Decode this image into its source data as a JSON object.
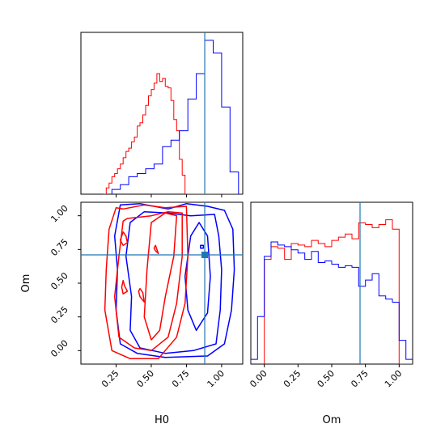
{
  "colors": {
    "series_a": "#ff0000",
    "series_b": "#0000ff",
    "truth": "#1f77b4",
    "axes": "#000000"
  },
  "chart_data": [
    {
      "id": "h0-marginal",
      "type": "histogram",
      "xlim": [
        0.0,
        1.15
      ],
      "xticks": [
        0.25,
        0.5,
        0.75,
        1.0
      ],
      "show_tick_labels": false,
      "truth": 0.88,
      "series": [
        {
          "color": "#ff0000",
          "x": [
            0.16,
            0.18,
            0.2,
            0.22,
            0.24,
            0.26,
            0.28,
            0.3,
            0.32,
            0.34,
            0.36,
            0.38,
            0.4,
            0.42,
            0.44,
            0.46,
            0.48,
            0.5,
            0.52,
            0.54,
            0.56,
            0.58,
            0.6,
            0.62,
            0.64,
            0.66,
            0.68,
            0.7,
            0.72,
            0.74
          ],
          "y": [
            0.0,
            0.04,
            0.07,
            0.11,
            0.13,
            0.16,
            0.19,
            0.23,
            0.27,
            0.29,
            0.33,
            0.36,
            0.43,
            0.45,
            0.5,
            0.56,
            0.62,
            0.66,
            0.7,
            0.76,
            0.71,
            0.73,
            0.68,
            0.67,
            0.59,
            0.47,
            0.4,
            0.22,
            0.12,
            0.0
          ]
        },
        {
          "color": "#0000ff",
          "x": [
            0.22,
            0.28,
            0.34,
            0.4,
            0.46,
            0.52,
            0.58,
            0.64,
            0.7,
            0.76,
            0.82,
            0.88,
            0.94,
            1.0,
            1.06,
            1.12
          ],
          "y": [
            0.03,
            0.06,
            0.11,
            0.13,
            0.16,
            0.19,
            0.3,
            0.34,
            0.4,
            0.6,
            0.76,
            0.97,
            0.89,
            0.55,
            0.14,
            0.0
          ]
        }
      ]
    },
    {
      "id": "om-marginal",
      "type": "histogram",
      "xlim": [
        -0.1,
        1.1
      ],
      "xticks": [
        0.0,
        0.25,
        0.5,
        0.75,
        1.0
      ],
      "xticklabels": [
        "0.00",
        "0.25",
        "0.50",
        "0.75",
        "1.00"
      ],
      "xlabel": "Om",
      "truth": 0.71,
      "series": [
        {
          "color": "#ff0000",
          "x": [
            0.0,
            0.05,
            0.1,
            0.15,
            0.2,
            0.25,
            0.3,
            0.35,
            0.4,
            0.45,
            0.5,
            0.55,
            0.6,
            0.65,
            0.7,
            0.75,
            0.8,
            0.85,
            0.9,
            0.95,
            1.0
          ],
          "y": [
            0.66,
            0.74,
            0.73,
            0.66,
            0.76,
            0.75,
            0.74,
            0.78,
            0.76,
            0.74,
            0.78,
            0.8,
            0.82,
            0.79,
            0.89,
            0.88,
            0.86,
            0.88,
            0.91,
            0.85,
            0.0
          ]
        },
        {
          "color": "#0000ff",
          "x": [
            -0.1,
            -0.05,
            0.0,
            0.05,
            0.1,
            0.15,
            0.2,
            0.25,
            0.3,
            0.35,
            0.4,
            0.45,
            0.5,
            0.55,
            0.6,
            0.65,
            0.7,
            0.75,
            0.8,
            0.85,
            0.9,
            0.95,
            1.0,
            1.05,
            1.1
          ],
          "y": [
            0.03,
            0.3,
            0.68,
            0.77,
            0.75,
            0.74,
            0.72,
            0.7,
            0.66,
            0.71,
            0.64,
            0.65,
            0.63,
            0.61,
            0.62,
            0.61,
            0.49,
            0.53,
            0.57,
            0.43,
            0.41,
            0.39,
            0.15,
            0.03,
            0.03
          ]
        }
      ]
    },
    {
      "id": "h0-om-joint",
      "type": "contour",
      "xlim": [
        0.0,
        1.15
      ],
      "ylim": [
        -0.1,
        1.1
      ],
      "xticks": [
        0.25,
        0.5,
        0.75,
        1.0
      ],
      "xticklabels": [
        "0.25",
        "0.50",
        "0.75",
        "1.00"
      ],
      "yticks": [
        0.0,
        0.25,
        0.5,
        0.75,
        1.0
      ],
      "yticklabels": [
        "0.00",
        "0.25",
        "0.50",
        "0.75",
        "1.00"
      ],
      "xlabel": "H0",
      "ylabel": "Om",
      "truth": {
        "x": 0.88,
        "y": 0.71
      },
      "series": [
        {
          "color": "#0000ff",
          "contours": [
            [
              [
                0.62,
                1.05
              ],
              [
                0.75,
                1.09
              ],
              [
                0.9,
                1.07
              ],
              [
                1.02,
                1.04
              ],
              [
                1.08,
                0.9
              ],
              [
                1.09,
                0.6
              ],
              [
                1.07,
                0.3
              ],
              [
                1.02,
                0.05
              ],
              [
                0.9,
                -0.04
              ],
              [
                0.6,
                -0.05
              ],
              [
                0.4,
                -0.02
              ],
              [
                0.28,
                0.05
              ],
              [
                0.25,
                0.3
              ],
              [
                0.26,
                0.6
              ],
              [
                0.24,
                0.85
              ],
              [
                0.28,
                1.08
              ],
              [
                0.42,
                1.09
              ],
              [
                0.62,
                1.05
              ]
            ],
            [
              [
                0.78,
                1.0
              ],
              [
                0.95,
                1.01
              ],
              [
                0.98,
                0.85
              ],
              [
                1.0,
                0.6
              ],
              [
                0.99,
                0.3
              ],
              [
                0.96,
                0.05
              ],
              [
                0.8,
                0.0
              ],
              [
                0.6,
                -0.02
              ],
              [
                0.42,
                0.02
              ],
              [
                0.35,
                0.15
              ],
              [
                0.36,
                0.4
              ],
              [
                0.32,
                0.7
              ],
              [
                0.35,
                0.95
              ],
              [
                0.45,
                1.03
              ],
              [
                0.62,
                1.02
              ],
              [
                0.78,
                1.0
              ]
            ],
            [
              [
                0.78,
                0.85
              ],
              [
                0.74,
                0.55
              ],
              [
                0.76,
                0.3
              ],
              [
                0.82,
                0.15
              ],
              [
                0.9,
                0.28
              ],
              [
                0.92,
                0.55
              ],
              [
                0.9,
                0.85
              ],
              [
                0.84,
                0.95
              ],
              [
                0.78,
                0.85
              ]
            ],
            [
              [
                0.85,
                0.76
              ],
              [
                0.87,
                0.76
              ],
              [
                0.87,
                0.78
              ],
              [
                0.85,
                0.78
              ],
              [
                0.85,
                0.76
              ]
            ]
          ]
        },
        {
          "color": "#ff0000",
          "contours": [
            [
              [
                0.3,
                1.05
              ],
              [
                0.45,
                1.08
              ],
              [
                0.6,
                1.06
              ],
              [
                0.75,
                1.07
              ],
              [
                0.76,
                0.7
              ],
              [
                0.74,
                0.35
              ],
              [
                0.68,
                0.1
              ],
              [
                0.55,
                -0.06
              ],
              [
                0.35,
                -0.06
              ],
              [
                0.22,
                0.0
              ],
              [
                0.17,
                0.3
              ],
              [
                0.18,
                0.6
              ],
              [
                0.2,
                0.9
              ],
              [
                0.25,
                1.06
              ],
              [
                0.3,
                1.05
              ]
            ],
            [
              [
                0.33,
                0.98
              ],
              [
                0.5,
                1.0
              ],
              [
                0.62,
                1.03
              ],
              [
                0.72,
                1.02
              ],
              [
                0.72,
                0.7
              ],
              [
                0.68,
                0.35
              ],
              [
                0.62,
                0.1
              ],
              [
                0.5,
                0.0
              ],
              [
                0.38,
                0.02
              ],
              [
                0.27,
                0.1
              ],
              [
                0.24,
                0.4
              ],
              [
                0.27,
                0.7
              ],
              [
                0.3,
                0.96
              ],
              [
                0.33,
                0.98
              ]
            ],
            [
              [
                0.5,
                0.95
              ],
              [
                0.6,
                1.02
              ],
              [
                0.68,
                1.0
              ],
              [
                0.66,
                0.7
              ],
              [
                0.6,
                0.4
              ],
              [
                0.56,
                0.15
              ],
              [
                0.5,
                0.08
              ],
              [
                0.45,
                0.25
              ],
              [
                0.47,
                0.6
              ],
              [
                0.5,
                0.95
              ]
            ],
            [
              [
                0.3,
                0.88
              ],
              [
                0.32,
                0.85
              ],
              [
                0.33,
                0.8
              ],
              [
                0.3,
                0.78
              ],
              [
                0.28,
                0.82
              ],
              [
                0.3,
                0.88
              ]
            ],
            [
              [
                0.3,
                0.52
              ],
              [
                0.31,
                0.48
              ],
              [
                0.33,
                0.44
              ],
              [
                0.3,
                0.42
              ],
              [
                0.29,
                0.47
              ],
              [
                0.3,
                0.52
              ]
            ],
            [
              [
                0.42,
                0.46
              ],
              [
                0.44,
                0.43
              ],
              [
                0.45,
                0.36
              ],
              [
                0.42,
                0.4
              ],
              [
                0.41,
                0.44
              ],
              [
                0.42,
                0.46
              ]
            ],
            [
              [
                0.53,
                0.78
              ],
              [
                0.54,
                0.75
              ],
              [
                0.55,
                0.72
              ],
              [
                0.53,
                0.74
              ],
              [
                0.52,
                0.76
              ],
              [
                0.53,
                0.78
              ]
            ]
          ]
        }
      ]
    }
  ]
}
